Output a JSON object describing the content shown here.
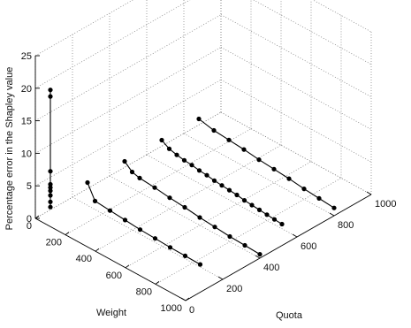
{
  "chart_data": {
    "type": "line",
    "projection": "3d",
    "title": "",
    "xlabel": "Weight",
    "ylabel": "Quota",
    "zlabel": "Percentage error in the Shapley value",
    "xlim": [
      0,
      1000
    ],
    "ylim": [
      0,
      1000
    ],
    "zlim": [
      0,
      25
    ],
    "x_ticks": [
      "0",
      "200",
      "400",
      "600",
      "800",
      "1000"
    ],
    "y_ticks": [
      "0",
      "200",
      "400",
      "600",
      "800",
      "1000"
    ],
    "z_ticks": [
      "0",
      "5",
      "10",
      "15",
      "20",
      "25"
    ],
    "grid": true,
    "colors": {
      "series": "#000000",
      "grid": "#777777",
      "axis": "#000000"
    },
    "series": [
      {
        "points": [
          {
            "weight": 100,
            "quota": 0,
            "error": 21.0
          },
          {
            "weight": 100,
            "quota": 0,
            "error": 20.0
          },
          {
            "weight": 100,
            "quota": 0,
            "error": 8.5
          },
          {
            "weight": 100,
            "quota": 0,
            "error": 6.5
          },
          {
            "weight": 100,
            "quota": 0,
            "error": 6.0
          },
          {
            "weight": 100,
            "quota": 0,
            "error": 5.5
          },
          {
            "weight": 100,
            "quota": 0,
            "error": 4.8
          },
          {
            "weight": 100,
            "quota": 0,
            "error": 3.8
          },
          {
            "weight": 100,
            "quota": 0,
            "error": 3.0
          }
        ]
      },
      {
        "points": [
          {
            "weight": 100,
            "quota": 200,
            "error": 3.5
          },
          {
            "weight": 150,
            "quota": 200,
            "error": 1.3
          },
          {
            "weight": 250,
            "quota": 200,
            "error": 1.1
          },
          {
            "weight": 350,
            "quota": 200,
            "error": 0.9
          },
          {
            "weight": 450,
            "quota": 200,
            "error": 0.7
          },
          {
            "weight": 550,
            "quota": 200,
            "error": 0.6
          },
          {
            "weight": 650,
            "quota": 200,
            "error": 0.5
          },
          {
            "weight": 750,
            "quota": 200,
            "error": 0.45
          },
          {
            "weight": 850,
            "quota": 200,
            "error": 0.4
          }
        ]
      },
      {
        "points": [
          {
            "weight": 100,
            "quota": 400,
            "error": 3.5
          },
          {
            "weight": 150,
            "quota": 400,
            "error": 2.5
          },
          {
            "weight": 200,
            "quota": 400,
            "error": 2.2
          },
          {
            "weight": 300,
            "quota": 400,
            "error": 2.0
          },
          {
            "weight": 400,
            "quota": 400,
            "error": 1.7
          },
          {
            "weight": 500,
            "quota": 400,
            "error": 1.5
          },
          {
            "weight": 600,
            "quota": 400,
            "error": 1.2
          },
          {
            "weight": 700,
            "quota": 400,
            "error": 1.0
          },
          {
            "weight": 800,
            "quota": 400,
            "error": 0.8
          },
          {
            "weight": 900,
            "quota": 400,
            "error": 0.7
          },
          {
            "weight": 1000,
            "quota": 400,
            "error": 0.6
          }
        ]
      },
      {
        "points": [
          {
            "weight": 100,
            "quota": 600,
            "error": 3.5
          },
          {
            "weight": 150,
            "quota": 600,
            "error": 2.8
          },
          {
            "weight": 200,
            "quota": 600,
            "error": 2.5
          },
          {
            "weight": 250,
            "quota": 600,
            "error": 2.3
          },
          {
            "weight": 300,
            "quota": 600,
            "error": 2.2
          },
          {
            "weight": 350,
            "quota": 600,
            "error": 2.0
          },
          {
            "weight": 400,
            "quota": 600,
            "error": 1.9
          },
          {
            "weight": 450,
            "quota": 600,
            "error": 1.7
          },
          {
            "weight": 500,
            "quota": 600,
            "error": 1.6
          },
          {
            "weight": 550,
            "quota": 600,
            "error": 1.5
          },
          {
            "weight": 600,
            "quota": 600,
            "error": 1.4
          },
          {
            "weight": 650,
            "quota": 600,
            "error": 1.2
          },
          {
            "weight": 700,
            "quota": 600,
            "error": 1.1
          },
          {
            "weight": 750,
            "quota": 600,
            "error": 1.0
          },
          {
            "weight": 800,
            "quota": 600,
            "error": 0.9
          },
          {
            "weight": 850,
            "quota": 600,
            "error": 0.8
          },
          {
            "weight": 900,
            "quota": 600,
            "error": 0.7
          }
        ]
      },
      {
        "points": [
          {
            "weight": 100,
            "quota": 800,
            "error": 3.5
          },
          {
            "weight": 200,
            "quota": 800,
            "error": 3.0
          },
          {
            "weight": 300,
            "quota": 800,
            "error": 2.8
          },
          {
            "weight": 400,
            "quota": 800,
            "error": 2.6
          },
          {
            "weight": 500,
            "quota": 800,
            "error": 2.3
          },
          {
            "weight": 600,
            "quota": 800,
            "error": 2.1
          },
          {
            "weight": 700,
            "quota": 800,
            "error": 1.9
          },
          {
            "weight": 800,
            "quota": 800,
            "error": 1.6
          },
          {
            "weight": 900,
            "quota": 800,
            "error": 1.4
          },
          {
            "weight": 1000,
            "quota": 800,
            "error": 1.2
          }
        ]
      }
    ]
  }
}
